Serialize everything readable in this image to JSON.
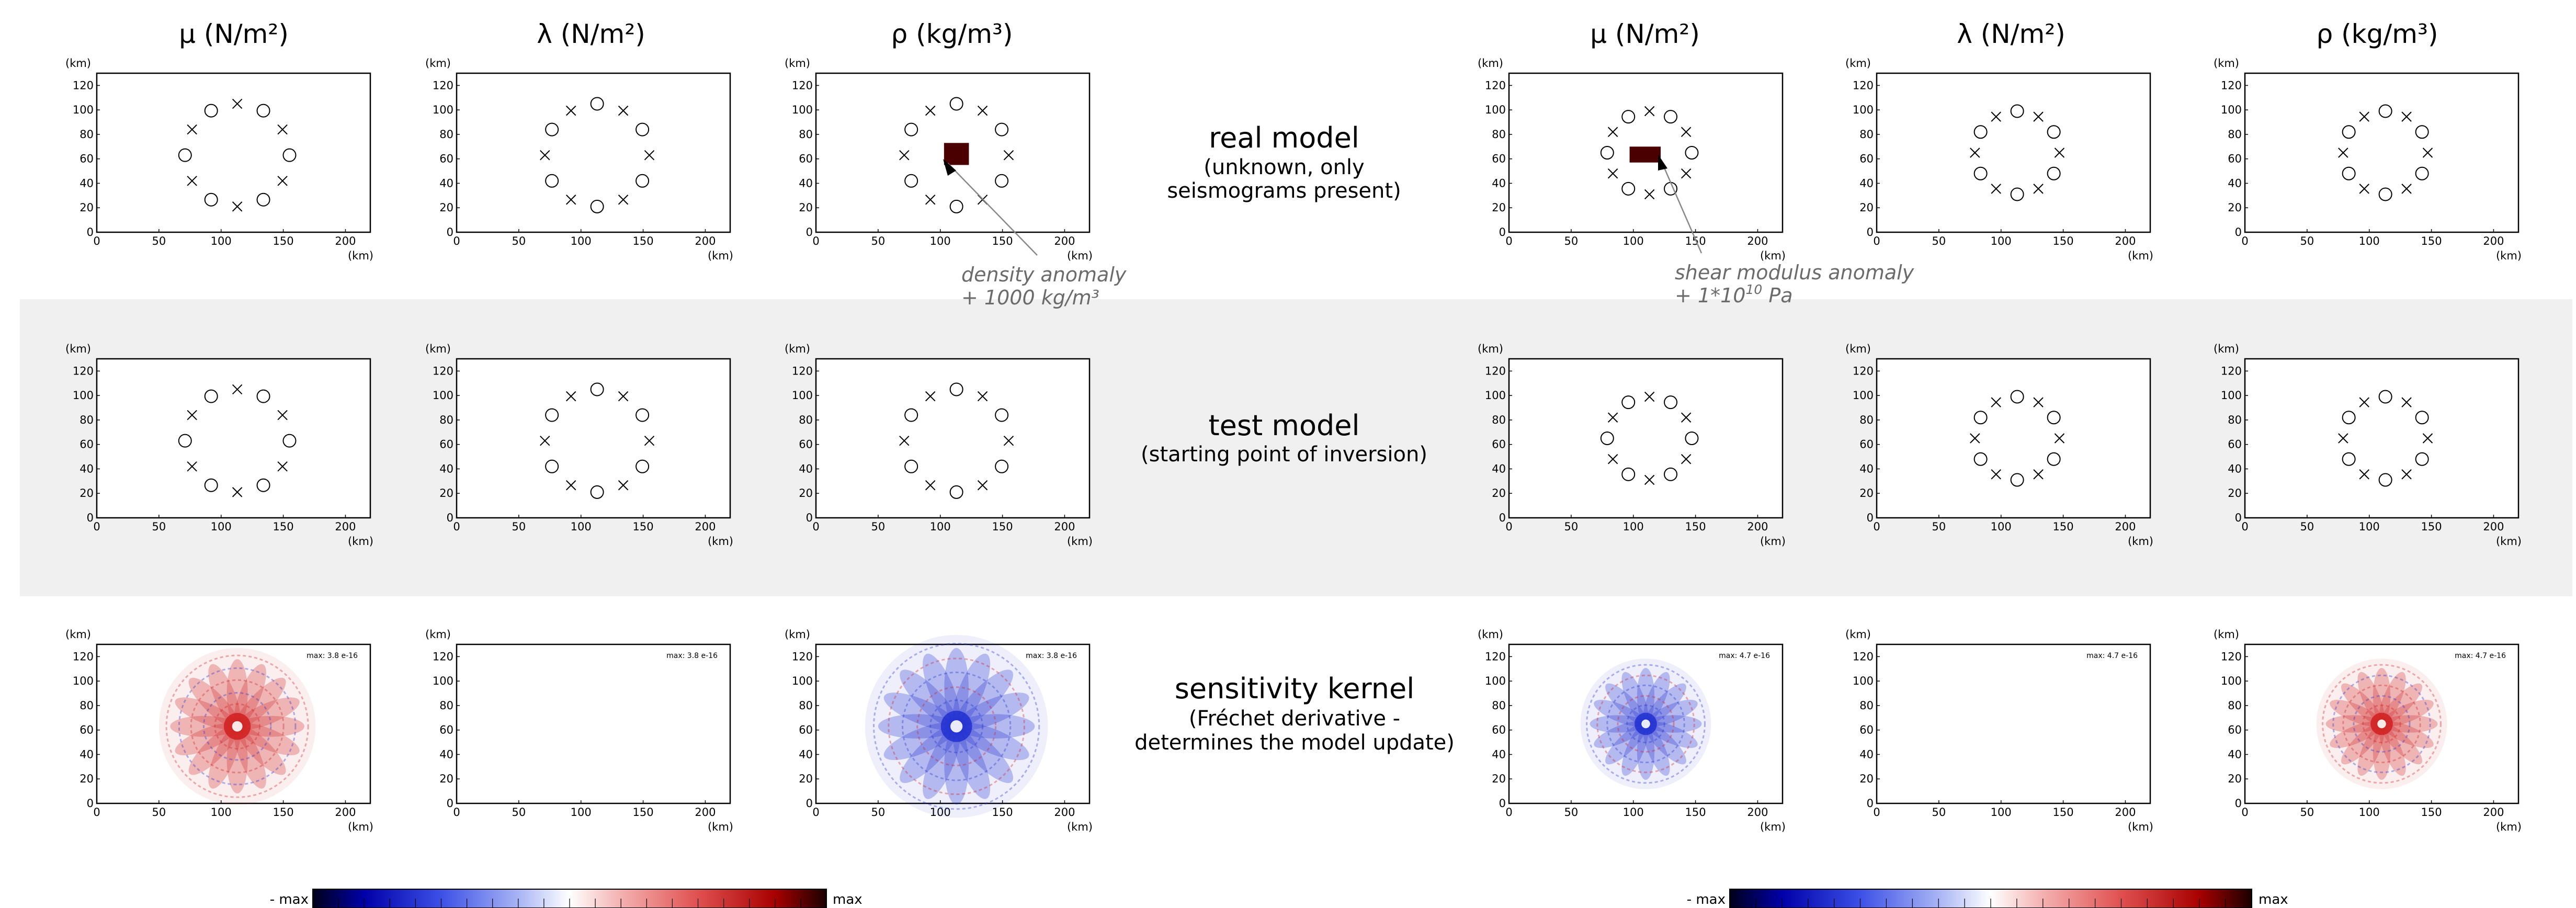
{
  "groups": [
    {
      "id": "left",
      "headers": [
        "μ (N/m²)",
        "λ (N/m²)",
        "ρ (kg/m³)"
      ],
      "density_anomaly_label_1": "density anomaly",
      "density_anomaly_label_2": "+ 1000 kg/m³",
      "colorbar": {
        "min_label": "- max",
        "max_label": "max"
      },
      "kernel_max_labels": [
        "max: 3.8 e-16",
        "max: 3.8 e-16",
        "max: 3.8 e-16"
      ]
    },
    {
      "id": "right",
      "headers": [
        "μ (N/m²)",
        "λ (N/m²)",
        "ρ (kg/m³)"
      ],
      "shear_anomaly_label_1": "shear modulus anomaly",
      "shear_anomaly_label_2_base": "+ 1*10",
      "shear_anomaly_label_2_exp": "10",
      "shear_anomaly_label_2_tail": " Pa",
      "colorbar": {
        "min_label": "- max",
        "max_label": "max"
      },
      "kernel_max_labels": [
        "max: 4.7 e-16",
        "max: 4.7 e-16",
        "max: 4.7 e-16"
      ]
    }
  ],
  "rows": [
    {
      "title": "real model",
      "subtitle_1": "(unknown, only",
      "subtitle_2": "seismograms present)"
    },
    {
      "title": "test model",
      "subtitle_1": "(starting point of inversion)",
      "subtitle_2": ""
    },
    {
      "title": "sensitivity kernel",
      "subtitle_1": "(Fréchet derivative -",
      "subtitle_2": "determines the model update)"
    }
  ],
  "axes": {
    "unit_label": "(km)",
    "x_ticks": [
      "0",
      "50",
      "100",
      "150",
      "200"
    ],
    "y_ticks": [
      "0",
      "20",
      "40",
      "60",
      "80",
      "100",
      "120"
    ],
    "xlim": [
      0,
      220
    ],
    "ylim": [
      0,
      130
    ]
  },
  "colors": {
    "anomaly": "#4a0000",
    "panel_bg": "#f0f0f0",
    "annotation": "#6b6b6b",
    "negative": "#0000b3",
    "positive": "#b30000"
  },
  "markers": {
    "left": {
      "center_km": [
        113,
        63
      ],
      "radius_km": 42,
      "count": 12,
      "pattern": "alternating circle/cross"
    },
    "right": {
      "center_km": [
        113,
        65
      ],
      "radius_km": 34,
      "count": 12,
      "pattern": "alternating circle/cross"
    }
  },
  "anomalies": {
    "density": {
      "group": "left",
      "x_km": [
        103,
        123
      ],
      "y_km": [
        55,
        73
      ],
      "value": "+ 1000 kg/m³"
    },
    "shear": {
      "group": "right",
      "x_km": [
        97,
        122
      ],
      "y_km": [
        57,
        70
      ],
      "value": "+ 1*10^10 Pa"
    }
  },
  "kernels": {
    "left": [
      {
        "type": "positive-dominant",
        "center_km": [
          113,
          63
        ],
        "radius_km": 60
      },
      {
        "type": "empty"
      },
      {
        "type": "negative-dominant",
        "center_km": [
          113,
          63
        ],
        "radius_km": 70
      }
    ],
    "right": [
      {
        "type": "negative-dominant",
        "center_km": [
          110,
          65
        ],
        "radius_km": 50
      },
      {
        "type": "empty"
      },
      {
        "type": "positive-dominant",
        "center_km": [
          110,
          65
        ],
        "radius_km": 50
      }
    ]
  }
}
